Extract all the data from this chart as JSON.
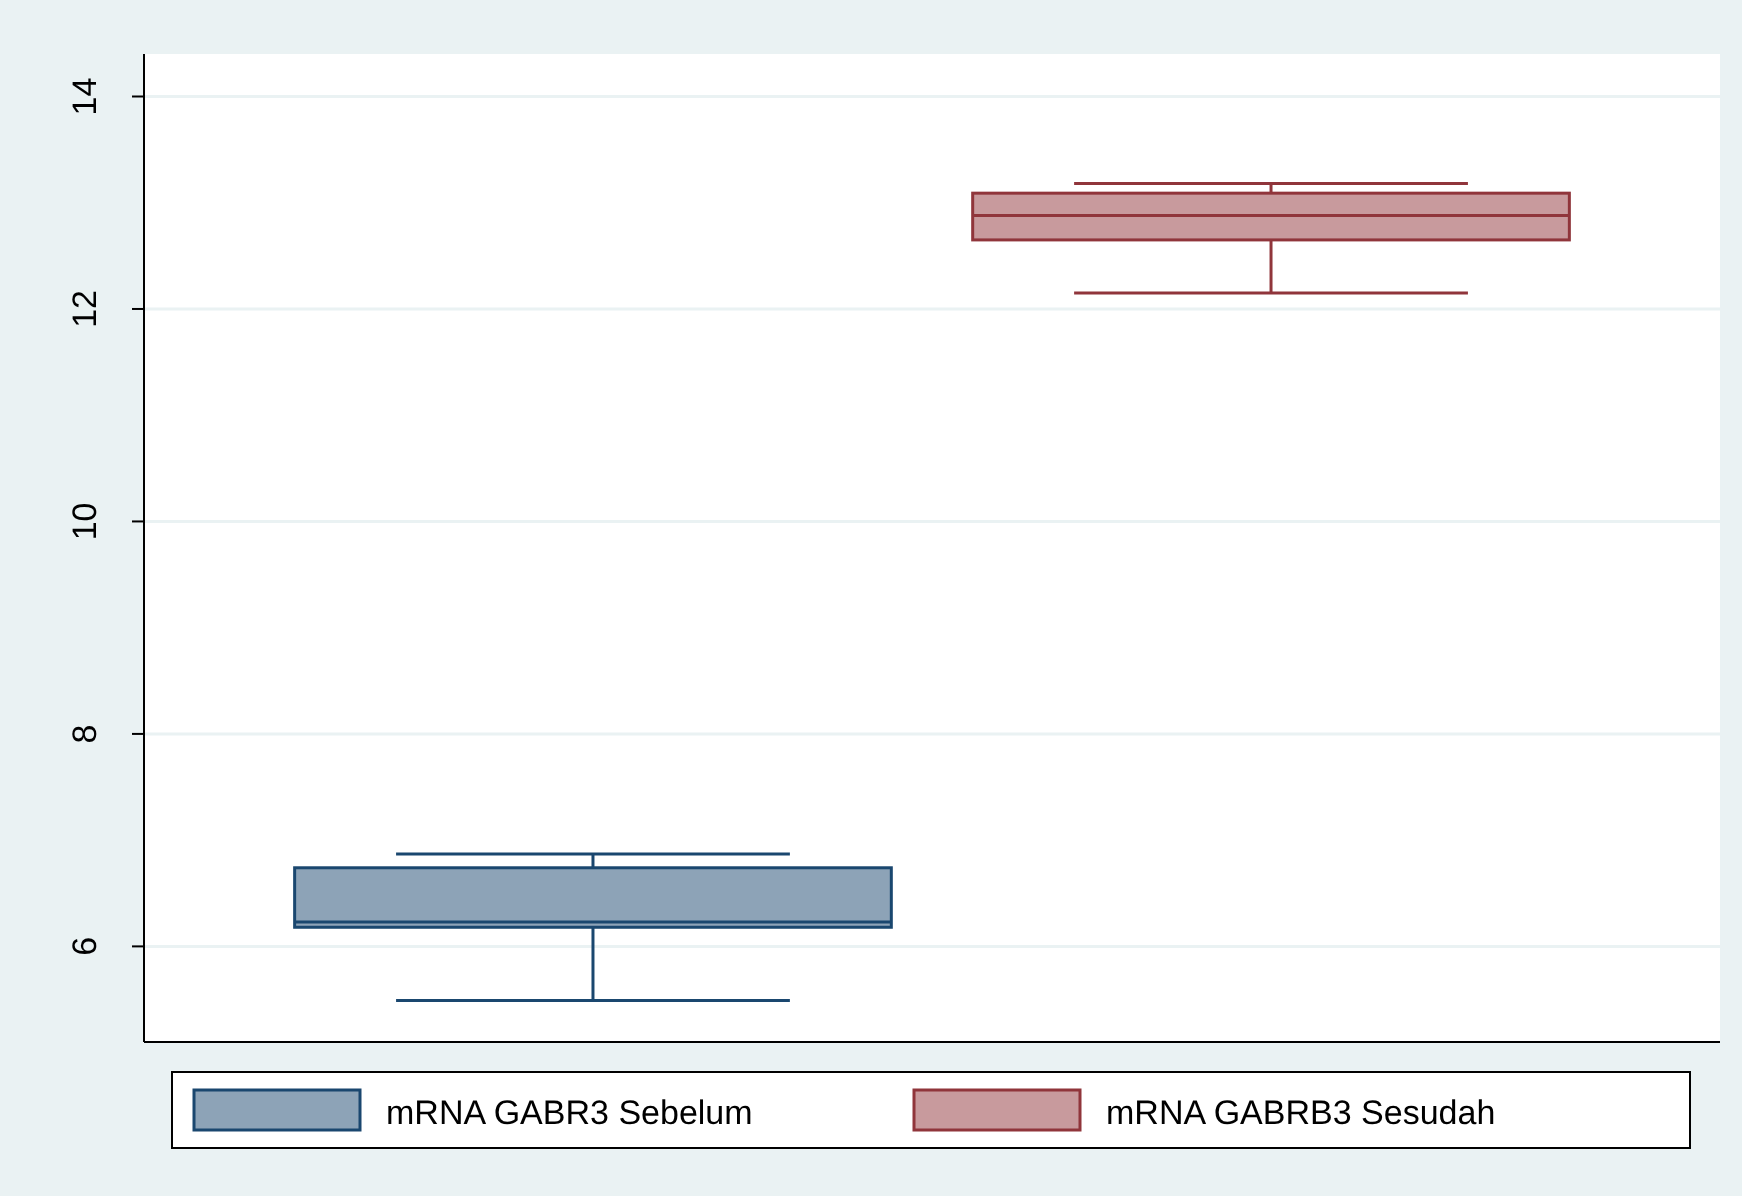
{
  "chart_data": {
    "type": "box",
    "categories": [
      null
    ],
    "ylim": [
      5.1,
      14.4
    ],
    "yticks": [
      6,
      8,
      10,
      12,
      14
    ],
    "grid": "y",
    "legend": "bottom",
    "series": [
      {
        "name": "mRNA GABR3 Sebelum",
        "color": "#1a476f",
        "boxes": [
          {
            "low": 5.49,
            "q1": 6.18,
            "median": 6.23,
            "q3": 6.74,
            "high": 6.87
          }
        ]
      },
      {
        "name": "mRNA GABRB3 Sesudah",
        "color": "#90353b",
        "boxes": [
          {
            "low": 12.15,
            "q1": 12.65,
            "median": 12.88,
            "q3": 13.09,
            "high": 13.18
          }
        ]
      }
    ]
  }
}
